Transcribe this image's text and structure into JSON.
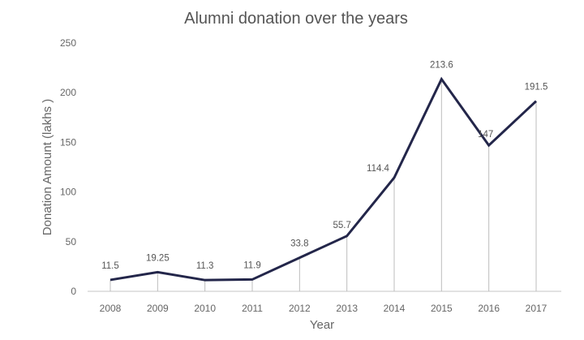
{
  "chart_data": {
    "type": "line",
    "title": "Alumni donation over the years",
    "xlabel": "Year",
    "ylabel": "Donation Amount (lakhs )",
    "categories": [
      "2008",
      "2009",
      "2010",
      "2011",
      "2012",
      "2013",
      "2014",
      "2015",
      "2016",
      "2017"
    ],
    "series": [
      {
        "values": [
          11.5,
          19.25,
          11.3,
          11.9,
          33.8,
          55.7,
          114.4,
          213.6,
          147,
          191.5
        ]
      }
    ],
    "data_labels": [
      "11.5",
      "19.25",
      "11.3",
      "11.9",
      "33.8",
      "55.7",
      "114.4",
      "213.6",
      "147",
      "191.5"
    ],
    "yticks": [
      0,
      50,
      100,
      150,
      200,
      250
    ],
    "ylim": [
      0,
      250
    ],
    "grid": false,
    "drop_lines": true,
    "colors": {
      "line": "#23264a",
      "drop_line": "#bdbdbd",
      "axis": "#d9d9d9"
    }
  }
}
